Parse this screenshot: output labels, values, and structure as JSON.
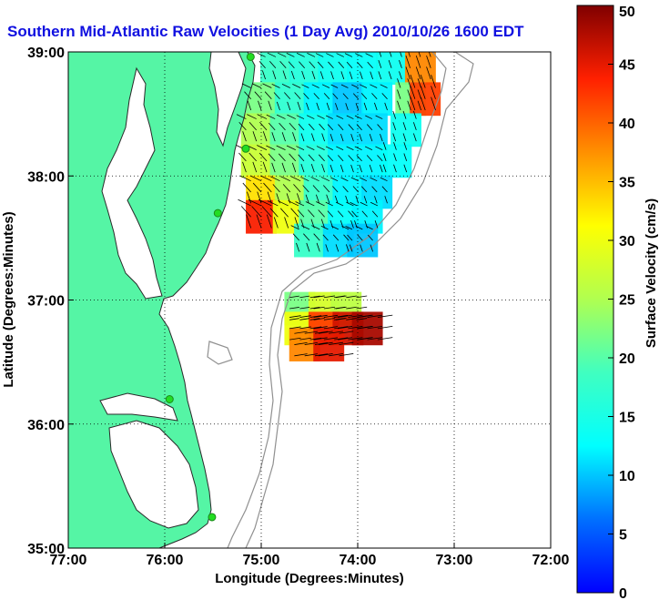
{
  "chart_data": {
    "type": "heatmap",
    "title": "Southern Mid-Atlantic Raw Velocities (1 Day Avg) 2010/10/26 1600 EDT",
    "xlabel": "Longitude (Degrees:Minutes)",
    "ylabel": "Latitude (Degrees:Minutes)",
    "xlim": [
      -77,
      -72
    ],
    "ylim": [
      35,
      39
    ],
    "x_ticks": [
      {
        "value": -77,
        "label": "77:00"
      },
      {
        "value": -76,
        "label": "76:00"
      },
      {
        "value": -75,
        "label": "75:00"
      },
      {
        "value": -74,
        "label": "74:00"
      },
      {
        "value": -73,
        "label": "73:00"
      },
      {
        "value": -72,
        "label": "72:00"
      }
    ],
    "y_ticks": [
      {
        "value": 35,
        "label": "35:00"
      },
      {
        "value": 36,
        "label": "36:00"
      },
      {
        "value": 37,
        "label": "37:00"
      },
      {
        "value": 38,
        "label": "38:00"
      },
      {
        "value": 39,
        "label": "39:00"
      }
    ],
    "grid": true,
    "colorbar": {
      "label": "Surface Velocity (cm/s)",
      "min": 0,
      "max": 50,
      "ticks": [
        0,
        5,
        10,
        15,
        20,
        25,
        30,
        35,
        40,
        45,
        50
      ],
      "colormap": "jet"
    },
    "colors": {
      "land": "#55f5a5",
      "coastline": "#2a2a2a",
      "bathymetry": "#909090",
      "grid": "#000000",
      "vectors": "#000000",
      "stations": "#22dd22",
      "title": "#1010e0"
    },
    "stations": [
      {
        "lon": -75.11,
        "lat": 38.96
      },
      {
        "lon": -75.16,
        "lat": 38.22
      },
      {
        "lon": -75.45,
        "lat": 37.7
      },
      {
        "lon": -75.95,
        "lat": 36.2
      },
      {
        "lon": -75.51,
        "lat": 35.25
      }
    ],
    "fields": [
      {
        "region": "north",
        "cells": [
          {
            "lon": -74.85,
            "lat": 38.87,
            "v": 18
          },
          {
            "lon": -74.55,
            "lat": 38.87,
            "v": 16
          },
          {
            "lon": -74.25,
            "lat": 38.87,
            "v": 14
          },
          {
            "lon": -73.95,
            "lat": 38.87,
            "v": 13
          },
          {
            "lon": -73.65,
            "lat": 38.87,
            "v": 14
          },
          {
            "lon": -73.35,
            "lat": 38.87,
            "v": 38
          },
          {
            "lon": -75.0,
            "lat": 38.62,
            "v": 22
          },
          {
            "lon": -74.7,
            "lat": 38.62,
            "v": 17
          },
          {
            "lon": -74.4,
            "lat": 38.62,
            "v": 12
          },
          {
            "lon": -74.1,
            "lat": 38.62,
            "v": 10
          },
          {
            "lon": -73.8,
            "lat": 38.62,
            "v": 12
          },
          {
            "lon": -73.45,
            "lat": 38.62,
            "v": 22
          },
          {
            "lon": -73.3,
            "lat": 38.62,
            "v": 42
          },
          {
            "lon": -75.05,
            "lat": 38.37,
            "v": 25
          },
          {
            "lon": -74.75,
            "lat": 38.37,
            "v": 20
          },
          {
            "lon": -74.45,
            "lat": 38.37,
            "v": 14
          },
          {
            "lon": -74.15,
            "lat": 38.37,
            "v": 11
          },
          {
            "lon": -73.85,
            "lat": 38.37,
            "v": 11
          },
          {
            "lon": -73.5,
            "lat": 38.37,
            "v": 14
          },
          {
            "lon": -75.05,
            "lat": 38.12,
            "v": 27
          },
          {
            "lon": -74.75,
            "lat": 38.12,
            "v": 22
          },
          {
            "lon": -74.45,
            "lat": 38.12,
            "v": 16
          },
          {
            "lon": -74.15,
            "lat": 38.12,
            "v": 12
          },
          {
            "lon": -73.85,
            "lat": 38.12,
            "v": 12
          },
          {
            "lon": -73.6,
            "lat": 38.12,
            "v": 13
          },
          {
            "lon": -75.0,
            "lat": 37.87,
            "v": 33
          },
          {
            "lon": -74.7,
            "lat": 37.87,
            "v": 25
          },
          {
            "lon": -74.4,
            "lat": 37.87,
            "v": 18
          },
          {
            "lon": -74.1,
            "lat": 37.87,
            "v": 12
          },
          {
            "lon": -73.8,
            "lat": 37.87,
            "v": 11
          },
          {
            "lon": -75.0,
            "lat": 37.67,
            "v": 44
          },
          {
            "lon": -74.72,
            "lat": 37.67,
            "v": 30
          },
          {
            "lon": -74.45,
            "lat": 37.67,
            "v": 20
          },
          {
            "lon": -74.15,
            "lat": 37.67,
            "v": 13
          },
          {
            "lon": -73.9,
            "lat": 37.67,
            "v": 12
          },
          {
            "lon": -74.5,
            "lat": 37.48,
            "v": 18
          },
          {
            "lon": -74.2,
            "lat": 37.48,
            "v": 11
          },
          {
            "lon": -73.95,
            "lat": 37.48,
            "v": 10
          }
        ]
      },
      {
        "region": "south",
        "cells": [
          {
            "lon": -74.6,
            "lat": 36.93,
            "v": 22
          },
          {
            "lon": -74.35,
            "lat": 36.93,
            "v": 28
          },
          {
            "lon": -74.12,
            "lat": 36.93,
            "v": 26
          },
          {
            "lon": -74.6,
            "lat": 36.77,
            "v": 30
          },
          {
            "lon": -74.35,
            "lat": 36.77,
            "v": 42
          },
          {
            "lon": -74.1,
            "lat": 36.77,
            "v": 46
          },
          {
            "lon": -73.9,
            "lat": 36.77,
            "v": 48
          },
          {
            "lon": -74.55,
            "lat": 36.64,
            "v": 38
          },
          {
            "lon": -74.3,
            "lat": 36.64,
            "v": 45
          }
        ]
      }
    ]
  }
}
